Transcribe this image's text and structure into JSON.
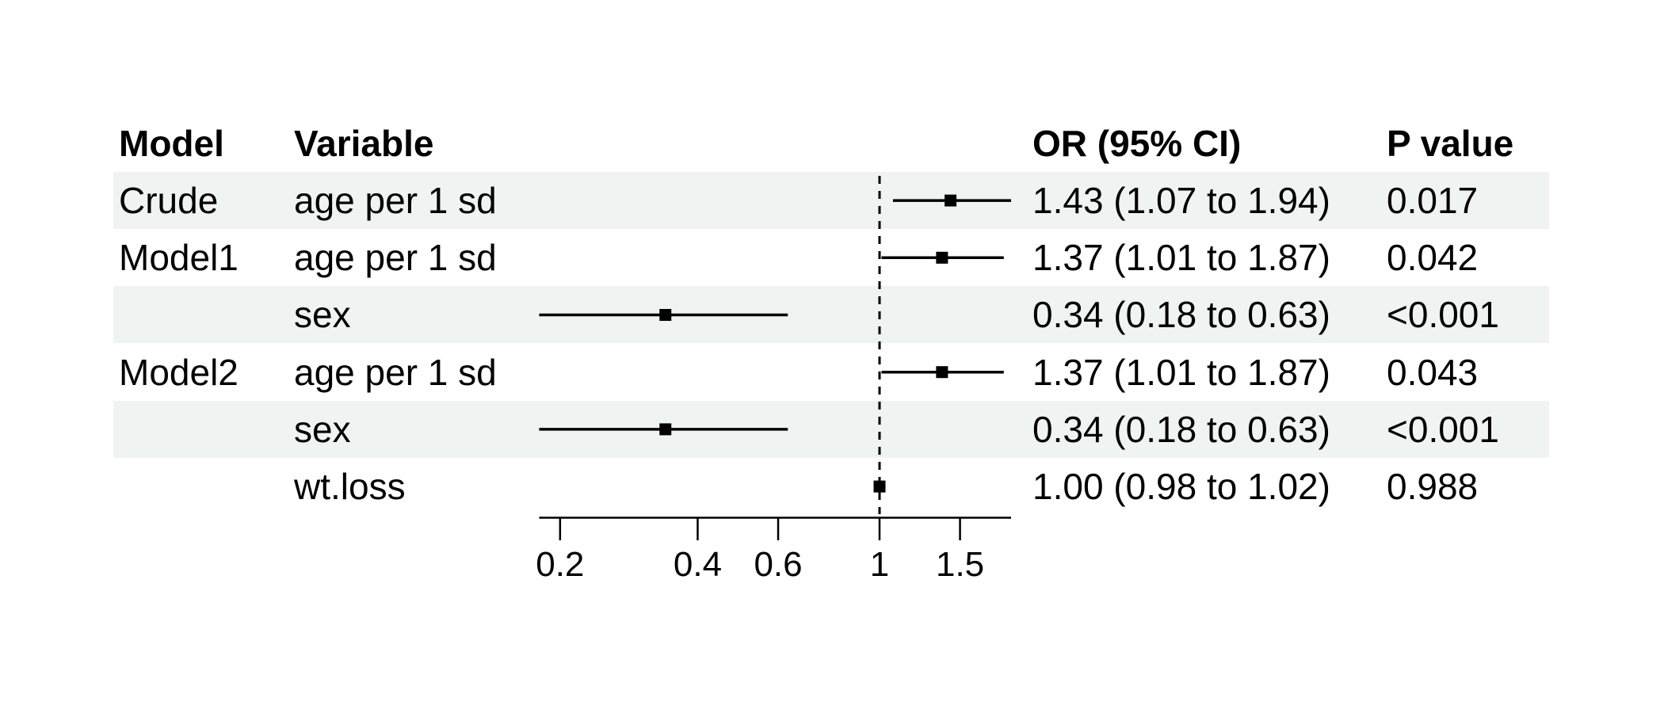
{
  "chart_data": {
    "type": "forest",
    "title": "",
    "columns": {
      "model": "Model",
      "variable": "Variable",
      "or_ci": "OR (95% CI)",
      "p": "P value"
    },
    "rows": [
      {
        "model": "Crude",
        "variable": "age per 1 sd",
        "or_ci": "1.43 (1.07 to 1.94)",
        "p": "0.017",
        "est": 1.43,
        "low": 1.07,
        "high": 1.94,
        "striped": true
      },
      {
        "model": "Model1",
        "variable": "age per 1 sd",
        "or_ci": "1.37 (1.01 to 1.87)",
        "p": "0.042",
        "est": 1.37,
        "low": 1.01,
        "high": 1.87,
        "striped": false
      },
      {
        "model": "",
        "variable": "sex",
        "or_ci": "0.34 (0.18 to 0.63)",
        "p": "<0.001",
        "est": 0.34,
        "low": 0.18,
        "high": 0.63,
        "striped": true
      },
      {
        "model": "Model2",
        "variable": "age per 1 sd",
        "or_ci": "1.37 (1.01 to 1.87)",
        "p": "0.043",
        "est": 1.37,
        "low": 1.01,
        "high": 1.87,
        "striped": false
      },
      {
        "model": "",
        "variable": "sex",
        "or_ci": "0.34 (0.18 to 0.63)",
        "p": "<0.001",
        "est": 0.34,
        "low": 0.18,
        "high": 0.63,
        "striped": true
      },
      {
        "model": "",
        "variable": "wt.loss",
        "or_ci": "1.00 (0.98 to 1.02)",
        "p": "0.988",
        "est": 1.0,
        "low": 0.98,
        "high": 1.02,
        "striped": false
      }
    ],
    "x_axis": {
      "scale": "log",
      "ticks": [
        0.2,
        0.4,
        0.6,
        1,
        1.5
      ],
      "tick_labels": [
        "0.2",
        "0.4",
        "0.6",
        "1",
        "1.5"
      ],
      "range": [
        0.18,
        1.94
      ],
      "ref_line": 1
    },
    "legend": null,
    "grid": false,
    "colors": {
      "stripe": "#eff3f2",
      "marker": "#000000",
      "line": "#000000",
      "text": "#000000",
      "background": "#ffffff"
    }
  }
}
